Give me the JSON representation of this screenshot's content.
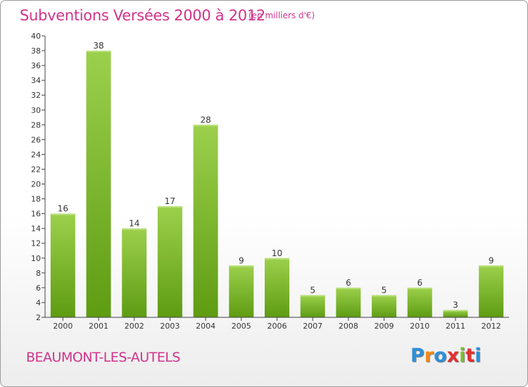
{
  "header": {
    "title": "Subventions Versées 2000 à 2012",
    "unit": "(en milliers d'€)"
  },
  "footer": {
    "commune": "BEAUMONT-LES-AUTELS",
    "logo_letters": [
      "P",
      "r",
      "o",
      "x",
      "i",
      "t",
      "i"
    ],
    "logo_colors": [
      "#2e8fd6",
      "#f08a1c",
      "#2e8fd6",
      "#e32f2f",
      "#7bbf2a",
      "#e32f2f",
      "#2e8fd6"
    ]
  },
  "colors": {
    "title": "#d1338b",
    "bar_light": "#9cd04c",
    "bar_dark": "#5e9c12",
    "axis": "#444444"
  },
  "chart_data": {
    "type": "bar",
    "categories": [
      "2000",
      "2001",
      "2002",
      "2003",
      "2004",
      "2005",
      "2006",
      "2007",
      "2008",
      "2009",
      "2010",
      "2011",
      "2012"
    ],
    "values": [
      16,
      38,
      14,
      17,
      28,
      9,
      10,
      5,
      6,
      5,
      6,
      3,
      9
    ],
    "yticks": [
      2,
      4,
      6,
      8,
      10,
      12,
      14,
      16,
      18,
      20,
      22,
      24,
      26,
      28,
      30,
      32,
      34,
      36,
      38,
      40
    ],
    "ylim": [
      2,
      40
    ],
    "title": "Subventions Versées 2000 à 2012",
    "xlabel": "",
    "ylabel": ""
  }
}
